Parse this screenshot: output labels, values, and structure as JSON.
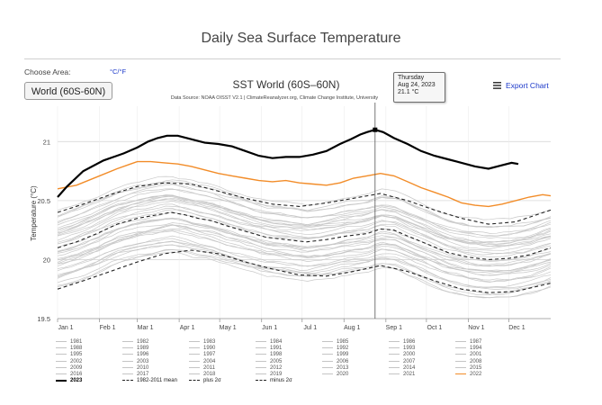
{
  "page": {
    "title": "Daily Sea Surface Temperature",
    "choose_area_label": "Choose Area:",
    "unit_toggle": "°C/°F",
    "area_value": "World (60S-60N)",
    "export_label": "Export Chart",
    "export_icon": "menu-icon"
  },
  "tooltip": {
    "day": "Thursday",
    "date": "Aug 24, 2023",
    "value": "21.1 °C"
  },
  "colors": {
    "year_2023": "#000000",
    "year_2022": "#f28c28",
    "climatology": "#222222",
    "other_years": "#c8c8c8",
    "link": "#1a37c9"
  },
  "chart_data": {
    "type": "line",
    "title": "SST World (60S–60N)",
    "subtitle": "Data Source: NOAA OISST V2.1 | ClimateReanalyzer.org, Climate Change Institute, University of Maine",
    "ylabel": "Temperature (°C)",
    "xlabel": "",
    "ylim": [
      19.5,
      21.3
    ],
    "yticks": [
      19.5,
      20,
      20.5,
      21
    ],
    "ytick_labels": [
      "19.5",
      "20",
      "20.5",
      "21"
    ],
    "xlim": [
      1,
      366
    ],
    "xticks": [
      1,
      32,
      60,
      91,
      121,
      152,
      182,
      213,
      244,
      274,
      305,
      335
    ],
    "xtick_labels": [
      "Jan 1",
      "Feb 1",
      "Mar 1",
      "Apr 1",
      "May 1",
      "Jun 1",
      "Jul 1",
      "Aug 1",
      "Sep 1",
      "Oct 1",
      "Nov 1",
      "Dec 1"
    ],
    "grid": true,
    "crosshair_day": 236,
    "series": [
      {
        "name": "2023",
        "style": "bold",
        "x": [
          1,
          8,
          20,
          35,
          50,
          60,
          68,
          75,
          82,
          90,
          100,
          110,
          120,
          130,
          140,
          150,
          160,
          170,
          180,
          190,
          200,
          210,
          218,
          225,
          230,
          236,
          242,
          250,
          260,
          270,
          280,
          290,
          300,
          310,
          320,
          330,
          337,
          342
        ],
        "values": [
          20.53,
          20.62,
          20.75,
          20.84,
          20.9,
          20.95,
          21.0,
          21.03,
          21.05,
          21.05,
          21.02,
          20.99,
          20.98,
          20.96,
          20.92,
          20.88,
          20.86,
          20.87,
          20.87,
          20.89,
          20.92,
          20.98,
          21.02,
          21.06,
          21.08,
          21.1,
          21.08,
          21.03,
          20.98,
          20.92,
          20.88,
          20.85,
          20.82,
          20.79,
          20.77,
          20.8,
          20.82,
          20.81
        ]
      },
      {
        "name": "2022",
        "style": "orange",
        "x": [
          1,
          15,
          30,
          45,
          55,
          60,
          70,
          80,
          90,
          100,
          110,
          120,
          130,
          140,
          150,
          160,
          170,
          180,
          190,
          200,
          210,
          220,
          230,
          240,
          250,
          260,
          270,
          280,
          290,
          300,
          310,
          320,
          330,
          340,
          350,
          360,
          366
        ],
        "values": [
          20.6,
          20.63,
          20.7,
          20.77,
          20.81,
          20.83,
          20.83,
          20.82,
          20.81,
          20.79,
          20.76,
          20.73,
          20.71,
          20.69,
          20.67,
          20.66,
          20.67,
          20.65,
          20.64,
          20.63,
          20.65,
          20.69,
          20.71,
          20.73,
          20.71,
          20.66,
          20.61,
          20.57,
          20.53,
          20.48,
          20.46,
          20.45,
          20.47,
          20.5,
          20.53,
          20.55,
          20.54
        ]
      },
      {
        "name": "1982-2011 mean",
        "style": "dashed",
        "x": [
          1,
          15,
          30,
          45,
          60,
          75,
          85,
          95,
          105,
          115,
          125,
          140,
          155,
          170,
          185,
          200,
          215,
          230,
          240,
          250,
          260,
          275,
          290,
          305,
          320,
          335,
          350,
          366
        ],
        "values": [
          20.1,
          20.15,
          20.22,
          20.3,
          20.35,
          20.38,
          20.4,
          20.38,
          20.35,
          20.33,
          20.29,
          20.24,
          20.19,
          20.17,
          20.15,
          20.17,
          20.2,
          20.22,
          20.26,
          20.25,
          20.2,
          20.13,
          20.06,
          20.02,
          20.0,
          20.01,
          20.04,
          20.1
        ]
      },
      {
        "name": "plus 2σ",
        "style": "dashed",
        "x": [
          1,
          20,
          40,
          60,
          80,
          100,
          120,
          140,
          160,
          180,
          200,
          220,
          240,
          260,
          280,
          300,
          320,
          340,
          366
        ],
        "values": [
          20.4,
          20.47,
          20.55,
          20.62,
          20.65,
          20.64,
          20.58,
          20.52,
          20.47,
          20.45,
          20.48,
          20.52,
          20.56,
          20.5,
          20.42,
          20.35,
          20.3,
          20.32,
          20.42
        ]
      },
      {
        "name": "minus 2σ",
        "style": "dashed",
        "x": [
          1,
          20,
          40,
          60,
          80,
          100,
          120,
          140,
          160,
          180,
          200,
          220,
          240,
          260,
          280,
          300,
          320,
          340,
          366
        ],
        "values": [
          19.75,
          19.82,
          19.9,
          19.98,
          20.05,
          20.08,
          20.05,
          19.98,
          19.92,
          19.87,
          19.86,
          19.9,
          19.95,
          19.9,
          19.82,
          19.75,
          19.72,
          19.73,
          19.8
        ]
      }
    ],
    "legend": {
      "placement": "bottom",
      "columns": [
        [
          "1981",
          "1988",
          "1995",
          "2002",
          "2009",
          "2016",
          "2023"
        ],
        [
          "1982",
          "1989",
          "1996",
          "2003",
          "2010",
          "2017",
          "1982-2011 mean"
        ],
        [
          "1983",
          "1990",
          "1997",
          "2004",
          "2011",
          "2018",
          "plus 2σ"
        ],
        [
          "1984",
          "1991",
          "1998",
          "2005",
          "2012",
          "2019",
          "minus 2σ"
        ],
        [
          "1985",
          "1992",
          "1999",
          "2006",
          "2013",
          "2020"
        ],
        [
          "1986",
          "1993",
          "2000",
          "2007",
          "2014",
          "2021"
        ],
        [
          "1987",
          "1994",
          "2001",
          "2008",
          "2015",
          "2022"
        ]
      ]
    }
  }
}
